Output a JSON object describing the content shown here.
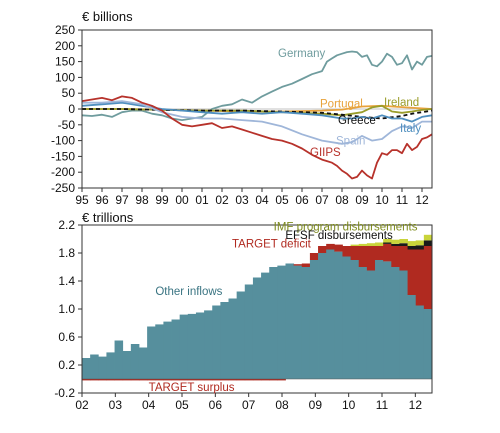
{
  "chart_data": [
    {
      "type": "line",
      "unit_label": "€ billions",
      "ylim": [
        -250,
        250
      ],
      "yticks": [
        250,
        200,
        150,
        100,
        50,
        0,
        -50,
        -100,
        -150,
        -200,
        -250
      ],
      "xlim": [
        1995,
        2012.5
      ],
      "xtick_labels": [
        "95",
        "96",
        "97",
        "98",
        "99",
        "00",
        "01",
        "02",
        "03",
        "04",
        "05",
        "06",
        "07",
        "08",
        "09",
        "10",
        "11",
        "12"
      ],
      "series": [
        {
          "name": "Germany",
          "color": "#6f9c9e",
          "style": "solid",
          "x": [
            1995,
            1995.5,
            1996,
            1996.5,
            1997,
            1997.5,
            1998,
            1998.5,
            1999,
            1999.5,
            2000,
            2000.5,
            2001,
            2001.5,
            2002,
            2002.5,
            2003,
            2003.5,
            2004,
            2004.5,
            2005,
            2005.5,
            2006,
            2006.5,
            2007,
            2007.25,
            2007.5,
            2007.75,
            2008,
            2008.25,
            2008.5,
            2008.75,
            2009,
            2009.25,
            2009.5,
            2009.75,
            2010,
            2010.25,
            2010.5,
            2010.75,
            2011,
            2011.25,
            2011.5,
            2011.75,
            2012,
            2012.25,
            2012.5
          ],
          "y": [
            -20,
            -22,
            -18,
            -25,
            -10,
            -5,
            -5,
            -15,
            -20,
            -30,
            -35,
            -30,
            -25,
            0,
            10,
            15,
            30,
            20,
            40,
            55,
            70,
            80,
            95,
            110,
            120,
            150,
            160,
            170,
            175,
            180,
            182,
            180,
            165,
            170,
            140,
            135,
            150,
            175,
            165,
            140,
            145,
            170,
            125,
            150,
            140,
            165,
            168
          ]
        },
        {
          "name": "Portugal",
          "color": "#e8a33c",
          "style": "solid",
          "x": [
            1995,
            1997,
            1999,
            2001,
            2003,
            2005,
            2007,
            2008,
            2009,
            2010,
            2011,
            2012,
            2012.5
          ],
          "y": [
            0,
            0,
            -2,
            -5,
            -8,
            -8,
            -5,
            -2,
            8,
            10,
            6,
            2,
            0
          ]
        },
        {
          "name": "Ireland",
          "color": "#9a9d2a",
          "style": "solid",
          "x": [
            1995,
            1997,
            1999,
            2001,
            2003,
            2005,
            2007,
            2008,
            2009,
            2009.5,
            2010,
            2010.5,
            2011,
            2011.5,
            2012,
            2012.5
          ],
          "y": [
            0,
            0,
            -3,
            -5,
            -5,
            -10,
            -15,
            -20,
            -10,
            5,
            10,
            -8,
            -12,
            -8,
            -3,
            0
          ]
        },
        {
          "name": "Greece",
          "color": "#111111",
          "style": "dashed",
          "x": [
            1995,
            1997,
            1999,
            2001,
            2003,
            2005,
            2007,
            2008,
            2009,
            2010,
            2011,
            2011.5,
            2012,
            2012.5
          ],
          "y": [
            0,
            0,
            -3,
            -5,
            -5,
            -8,
            -12,
            -18,
            -25,
            -30,
            -22,
            -15,
            -10,
            -5
          ]
        },
        {
          "name": "Italy",
          "color": "#4f8fbf",
          "style": "solid",
          "x": [
            1995,
            1996,
            1997,
            1998,
            1999,
            2000,
            2001,
            2002,
            2003,
            2004,
            2005,
            2006,
            2007,
            2008,
            2008.5,
            2009,
            2009.5,
            2010,
            2010.5,
            2011,
            2011.5,
            2012,
            2012.5
          ],
          "y": [
            10,
            15,
            20,
            10,
            0,
            -5,
            -10,
            -15,
            -10,
            -15,
            -10,
            -15,
            -20,
            -30,
            -30,
            -25,
            -30,
            -20,
            -30,
            -30,
            -40,
            -25,
            -20
          ]
        },
        {
          "name": "Spain",
          "color": "#9fb6d9",
          "style": "solid",
          "x": [
            1995,
            1996,
            1997,
            1998,
            1999,
            2000,
            2001,
            2002,
            2003,
            2004,
            2005,
            2006,
            2007,
            2008,
            2008.5,
            2009,
            2009.5,
            2010,
            2010.5,
            2011,
            2011.5,
            2012,
            2012.5
          ],
          "y": [
            20,
            20,
            25,
            15,
            -10,
            -25,
            -30,
            -30,
            -35,
            -40,
            -55,
            -80,
            -100,
            -110,
            -105,
            -85,
            -100,
            -95,
            -70,
            -55,
            -60,
            -40,
            -40
          ]
        },
        {
          "name": "GIIPS",
          "color": "#b7322b",
          "style": "solid",
          "x": [
            1995,
            1995.5,
            1996,
            1996.5,
            1997,
            1997.5,
            1998,
            1998.5,
            1999,
            1999.5,
            2000,
            2000.5,
            2001,
            2001.5,
            2002,
            2002.5,
            2003,
            2003.5,
            2004,
            2004.5,
            2005,
            2005.5,
            2006,
            2006.5,
            2007,
            2007.25,
            2007.5,
            2007.75,
            2008,
            2008.25,
            2008.5,
            2008.75,
            2009,
            2009.25,
            2009.5,
            2009.75,
            2010,
            2010.25,
            2010.5,
            2010.75,
            2011,
            2011.25,
            2011.5,
            2011.75,
            2012,
            2012.25,
            2012.5
          ],
          "y": [
            25,
            30,
            35,
            28,
            40,
            35,
            20,
            10,
            -5,
            -30,
            -50,
            -55,
            -50,
            -45,
            -60,
            -55,
            -65,
            -75,
            -85,
            -95,
            -100,
            -110,
            -125,
            -145,
            -160,
            -165,
            -170,
            -180,
            -195,
            -205,
            -220,
            -215,
            -195,
            -210,
            -220,
            -170,
            -140,
            -145,
            -130,
            -130,
            -140,
            -110,
            -130,
            -120,
            -95,
            -90,
            -80
          ]
        }
      ],
      "labels": [
        "Germany",
        "Portugal",
        "Ireland",
        "Greece",
        "Italy",
        "Spain",
        "GIIPS"
      ]
    },
    {
      "type": "area",
      "unit_label": "€ trillions",
      "ylim": [
        -0.2,
        2.2
      ],
      "yticks": [
        2.2,
        1.8,
        1.4,
        1.0,
        0.6,
        0.2,
        -0.2
      ],
      "xlim": [
        2002,
        2012.5
      ],
      "xtick_labels": [
        "02",
        "03",
        "04",
        "05",
        "06",
        "07",
        "08",
        "09",
        "10",
        "11",
        "12"
      ],
      "x": [
        2002,
        2002.25,
        2002.5,
        2002.75,
        2003,
        2003.25,
        2003.5,
        2003.75,
        2004,
        2004.25,
        2004.5,
        2004.75,
        2005,
        2005.25,
        2005.5,
        2005.75,
        2006,
        2006.25,
        2006.5,
        2006.75,
        2007,
        2007.25,
        2007.5,
        2007.75,
        2008,
        2008.25,
        2008.5,
        2008.75,
        2009,
        2009.25,
        2009.5,
        2009.75,
        2010,
        2010.25,
        2010.5,
        2010.75,
        2011,
        2011.25,
        2011.5,
        2011.75,
        2012,
        2012.25,
        2012.5
      ],
      "series": [
        {
          "name": "Other inflows",
          "color": "#568f9d",
          "values": [
            0.3,
            0.35,
            0.32,
            0.38,
            0.55,
            0.4,
            0.5,
            0.45,
            0.75,
            0.78,
            0.82,
            0.85,
            0.92,
            0.93,
            0.95,
            0.98,
            1.05,
            1.1,
            1.15,
            1.25,
            1.35,
            1.45,
            1.52,
            1.6,
            1.62,
            1.65,
            1.62,
            1.6,
            1.7,
            1.8,
            1.85,
            1.82,
            1.75,
            1.7,
            1.6,
            1.55,
            1.7,
            1.68,
            1.6,
            1.55,
            1.2,
            1.05,
            1.0
          ]
        },
        {
          "name": "TARGET deficit",
          "color": "#b02a20",
          "values": [
            0,
            0,
            0,
            0,
            0,
            0,
            0,
            0,
            0,
            0,
            0,
            0,
            0,
            0,
            0,
            0,
            0,
            0,
            0,
            0,
            0,
            0,
            0,
            0,
            0,
            0,
            0.02,
            0.05,
            0.1,
            0.1,
            0.08,
            0.1,
            0.15,
            0.2,
            0.3,
            0.35,
            0.2,
            0.25,
            0.3,
            0.35,
            0.65,
            0.8,
            0.9
          ]
        },
        {
          "name": "EFSF disbursements",
          "color": "#1a1a1a",
          "values": [
            0,
            0,
            0,
            0,
            0,
            0,
            0,
            0,
            0,
            0,
            0,
            0,
            0,
            0,
            0,
            0,
            0,
            0,
            0,
            0,
            0,
            0,
            0,
            0,
            0,
            0,
            0,
            0,
            0,
            0,
            0,
            0,
            0,
            0,
            0,
            0,
            0,
            0.02,
            0.03,
            0.04,
            0.05,
            0.06,
            0.08
          ]
        },
        {
          "name": "IMF program disbursements",
          "color": "#c9d43a",
          "values": [
            0,
            0,
            0,
            0,
            0,
            0,
            0,
            0,
            0,
            0,
            0,
            0,
            0,
            0,
            0,
            0,
            0,
            0,
            0,
            0,
            0,
            0,
            0,
            0,
            0,
            0,
            0,
            0,
            0,
            0,
            0,
            0,
            0,
            0.02,
            0.03,
            0.04,
            0.05,
            0.05,
            0.06,
            0.06,
            0.07,
            0.07,
            0.08
          ]
        },
        {
          "name": "TARGET surplus",
          "color": "#b02a20",
          "values": [
            -0.02,
            -0.02,
            -0.02,
            -0.02,
            -0.02,
            -0.02,
            -0.02,
            -0.02,
            -0.02,
            -0.02,
            -0.02,
            -0.02,
            -0.02,
            -0.02,
            -0.02,
            -0.02,
            -0.02,
            -0.02,
            -0.02,
            -0.02,
            -0.02,
            -0.02,
            -0.02,
            -0.02,
            -0.02,
            0,
            0,
            0,
            0,
            0,
            0,
            0,
            0,
            0,
            0,
            0,
            0,
            0,
            0,
            0,
            0,
            0,
            0
          ]
        }
      ],
      "labels": [
        "IMF program disbursements",
        "EFSF disbursements",
        "TARGET deficit",
        "Other inflows",
        "TARGET surplus"
      ]
    }
  ]
}
